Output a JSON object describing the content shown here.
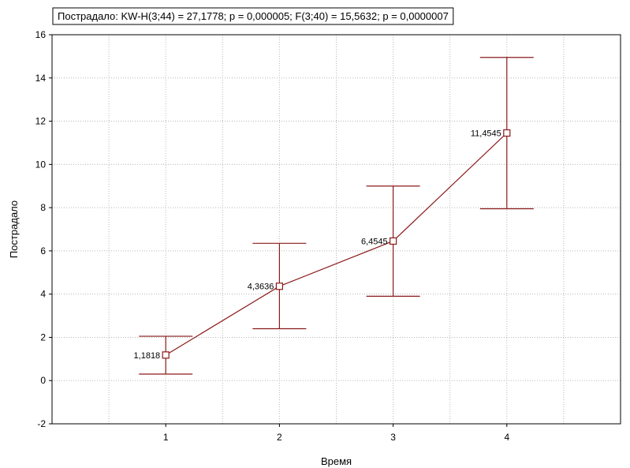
{
  "chart_data": {
    "type": "line",
    "title": "Пострадало:  KW-H(3;44) = 27,1778; p = 0,000005;  F(3;40) = 15,5632; p = 0,0000007",
    "xlabel": "Время",
    "ylabel": "Пострадало",
    "x": [
      1,
      2,
      3,
      4
    ],
    "x_tick_labels": [
      "1",
      "2",
      "3",
      "4"
    ],
    "xlim": [
      0,
      5
    ],
    "ylim": [
      -2,
      16
    ],
    "y_ticks": [
      -2,
      0,
      2,
      4,
      6,
      8,
      10,
      12,
      14,
      16
    ],
    "y_tick_labels": [
      "-2",
      "0",
      "2",
      "4",
      "6",
      "8",
      "10",
      "12",
      "14",
      "16"
    ],
    "grid": true,
    "series": [
      {
        "values": [
          1.1818,
          4.3636,
          6.4545,
          11.4545
        ],
        "value_labels": [
          "1,1818",
          "4,3636",
          "6,4545",
          "11,4545"
        ],
        "error_low": [
          0.3,
          2.4,
          3.9,
          7.95
        ],
        "error_high": [
          2.05,
          6.35,
          9.0,
          14.95
        ],
        "color": "#8b1a1a"
      }
    ]
  }
}
